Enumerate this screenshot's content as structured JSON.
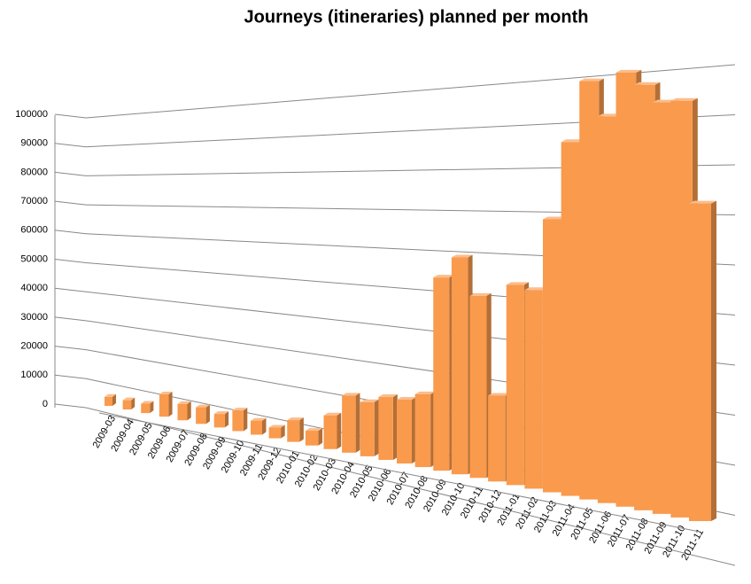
{
  "chart_data": {
    "type": "bar3d",
    "title": "Journeys (itineraries) planned per month",
    "categories": [
      "2009-03",
      "2009-04",
      "2009-05",
      "2009-06",
      "2009-07",
      "2009-08",
      "2009-09",
      "2009-10",
      "2009-11",
      "2009-12",
      "2010-01",
      "2010-02",
      "2010-03",
      "2010-04",
      "2010-05",
      "2010-06",
      "2010-07",
      "2010-08",
      "2010-09",
      "2010-10",
      "2010-11",
      "2010-12",
      "2011-01",
      "2011-02",
      "2011-03",
      "2011-04",
      "2011-05",
      "2011-06",
      "2011-07",
      "2011-08",
      "2011-09",
      "2011-10",
      "2011-11"
    ],
    "values": [
      3000,
      3000,
      3000,
      7000,
      5000,
      5000,
      4000,
      6000,
      4000,
      3000,
      6000,
      4000,
      9000,
      15000,
      14000,
      16000,
      16000,
      18000,
      47000,
      52000,
      43000,
      20000,
      46000,
      45000,
      61000,
      78000,
      91000,
      83000,
      92000,
      89000,
      85000,
      85000,
      64000
    ],
    "color": "#f99a4d",
    "ylim": [
      0,
      100000
    ],
    "yticks": [
      0,
      10000,
      20000,
      30000,
      40000,
      50000,
      60000,
      70000,
      80000,
      90000,
      100000
    ],
    "grid": true
  }
}
